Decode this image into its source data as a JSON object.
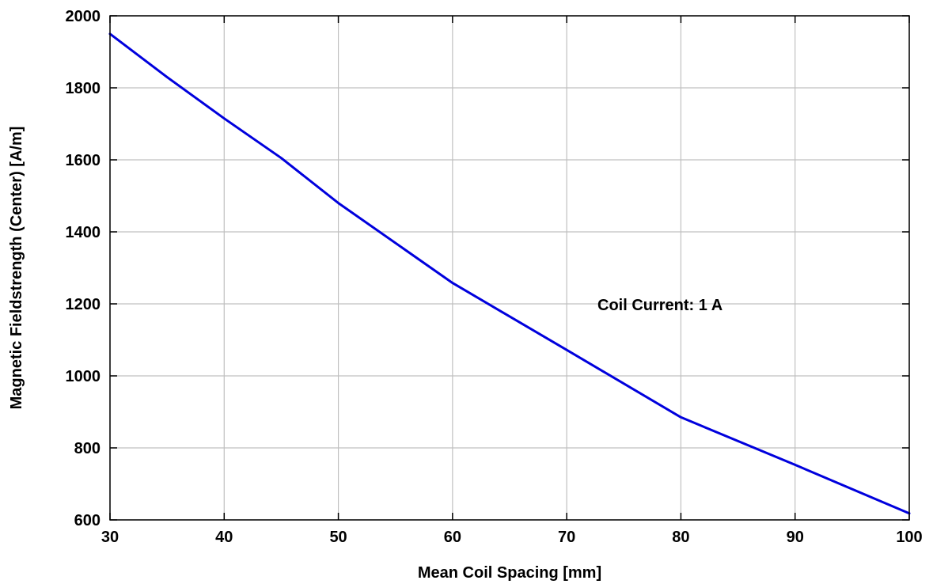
{
  "chart_data": {
    "type": "line",
    "title": "",
    "xlabel": "Mean Coil Spacing [mm]",
    "ylabel": "Magnetic Fieldstrength (Center) [A/m]",
    "xlim": [
      30,
      100
    ],
    "ylim": [
      600,
      2000
    ],
    "xticks": [
      "30",
      "40",
      "50",
      "60",
      "70",
      "80",
      "90",
      "100"
    ],
    "yticks": [
      "600",
      "800",
      "1000",
      "1200",
      "1400",
      "1600",
      "1800",
      "2000"
    ],
    "grid": true,
    "series": [
      {
        "color": "#0000dd",
        "x": [
          30,
          35,
          40,
          45,
          50,
          60,
          70,
          80,
          90,
          100
        ],
        "y": [
          1950,
          1830,
          1715,
          1605,
          1480,
          1258,
          1072,
          885,
          753,
          618
        ]
      }
    ],
    "annotation": "Coil Current: 1 A"
  }
}
